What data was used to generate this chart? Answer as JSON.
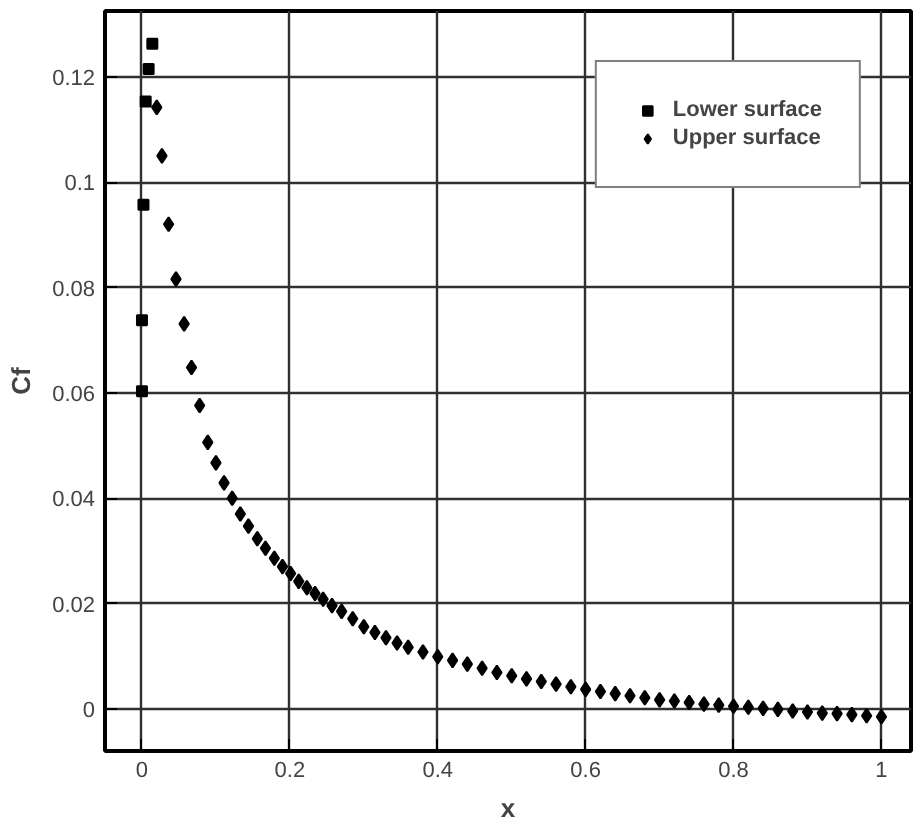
{
  "chart_data": {
    "type": "scatter",
    "xlabel": "x",
    "ylabel": "Cf",
    "xlim": [
      -0.05,
      1.04
    ],
    "ylim": [
      -0.008,
      0.1325
    ],
    "xticks": [
      0,
      0.2,
      0.4,
      0.6,
      0.8,
      1
    ],
    "yticks": [
      0,
      0.02,
      0.04,
      0.06,
      0.08,
      0.1,
      0.12
    ],
    "grid": true,
    "legend": "top right",
    "series": [
      {
        "name": "Lower surface",
        "color": "#000000",
        "marker": "square",
        "x": [
          0,
          0,
          0.002,
          0.005,
          0.009,
          0.014
        ],
        "values": [
          0.0603,
          0.0738,
          0.0957,
          0.1153,
          0.1215,
          0.1263
        ]
      },
      {
        "name": "Upper surface",
        "color": "#000000",
        "marker": "diamond",
        "x": [
          0.02,
          0.027,
          0.036,
          0.046,
          0.057,
          0.067,
          0.078,
          0.089,
          0.1,
          0.111,
          0.122,
          0.133,
          0.144,
          0.156,
          0.167,
          0.179,
          0.19,
          0.201,
          0.212,
          0.223,
          0.234,
          0.245,
          0.257,
          0.27,
          0.285,
          0.3,
          0.315,
          0.33,
          0.345,
          0.36,
          0.38,
          0.4,
          0.42,
          0.44,
          0.46,
          0.48,
          0.5,
          0.52,
          0.54,
          0.56,
          0.58,
          0.6,
          0.62,
          0.64,
          0.66,
          0.68,
          0.7,
          0.72,
          0.74,
          0.76,
          0.78,
          0.8,
          0.82,
          0.84,
          0.86,
          0.88,
          0.9,
          0.92,
          0.94,
          0.96,
          0.98,
          1.0
        ],
        "values": [
          0.1142,
          0.105,
          0.092,
          0.0816,
          0.0731,
          0.0648,
          0.0576,
          0.0506,
          0.0467,
          0.0429,
          0.04,
          0.037,
          0.0347,
          0.0323,
          0.0305,
          0.0286,
          0.027,
          0.0257,
          0.0242,
          0.023,
          0.0219,
          0.0208,
          0.0196,
          0.0185,
          0.0171,
          0.0156,
          0.0145,
          0.0135,
          0.0125,
          0.0117,
          0.0108,
          0.0099,
          0.0092,
          0.0085,
          0.0077,
          0.0069,
          0.0063,
          0.0057,
          0.0052,
          0.0047,
          0.0042,
          0.0037,
          0.0033,
          0.0029,
          0.0025,
          0.0021,
          0.0017,
          0.0015,
          0.0012,
          0.0009,
          0.0007,
          0.0005,
          0.0003,
          0.0001,
          -0.0001,
          -0.0004,
          -0.0006,
          -0.0008,
          -0.0009,
          -0.0011,
          -0.0013,
          -0.0015
        ]
      }
    ]
  }
}
